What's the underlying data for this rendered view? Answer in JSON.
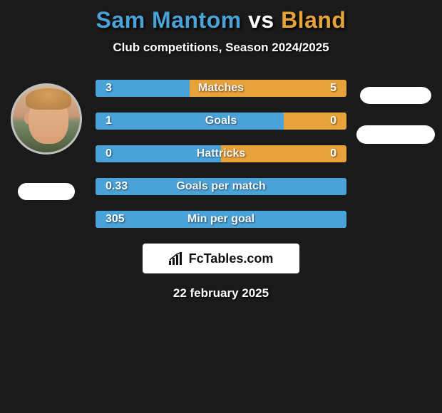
{
  "title": {
    "player1": "Sam Mantom",
    "vs": "vs",
    "player2": "Bland",
    "player1_color": "#4aa3d8",
    "vs_color": "#ffffff",
    "player2_color": "#e8a23a",
    "fontsize": 32
  },
  "subtitle": "Club competitions, Season 2024/2025",
  "subtitle_fontsize": 17,
  "bars": [
    {
      "label": "Matches",
      "left_val": "3",
      "right_val": "5",
      "left_pct": 37.5,
      "right_pct": 62.5,
      "left_color": "#4aa3d8",
      "right_color": "#e8a23a"
    },
    {
      "label": "Goals",
      "left_val": "1",
      "right_val": "0",
      "left_pct": 75,
      "right_pct": 25,
      "left_color": "#4aa3d8",
      "right_color": "#e8a23a"
    },
    {
      "label": "Hattricks",
      "left_val": "0",
      "right_val": "0",
      "left_pct": 50,
      "right_pct": 50,
      "left_color": "#4aa3d8",
      "right_color": "#e8a23a"
    },
    {
      "label": "Goals per match",
      "left_val": "0.33",
      "right_val": "",
      "left_pct": 100,
      "right_pct": 0,
      "left_color": "#4aa3d8",
      "right_color": "#e8a23a"
    },
    {
      "label": "Min per goal",
      "left_val": "305",
      "right_val": "",
      "left_pct": 100,
      "right_pct": 0,
      "left_color": "#4aa3d8",
      "right_color": "#e8a23a"
    }
  ],
  "bar_style": {
    "height": 24,
    "gap": 22,
    "label_fontsize": 16,
    "value_fontsize": 16,
    "text_color": "#ffffff",
    "border_radius": 3
  },
  "branding": {
    "text": "FcTables.com",
    "background": "#ffffff",
    "text_color": "#111111",
    "fontsize": 18,
    "icon": "bar-chart-icon"
  },
  "date_text": "22 february 2025",
  "date_fontsize": 17,
  "background_color": "#1a1a1a",
  "flags": {
    "left_bg": "#ffffff",
    "right1_bg": "#ffffff",
    "right2_bg": "#ffffff"
  }
}
